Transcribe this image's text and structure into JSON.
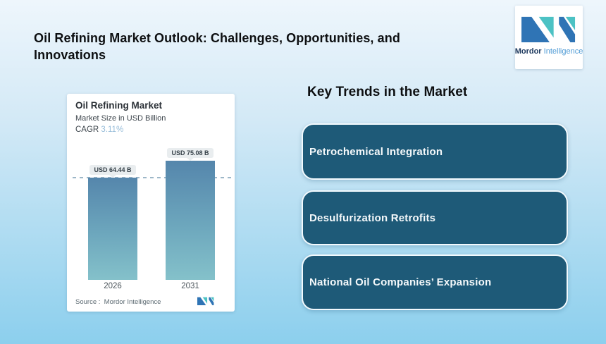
{
  "page": {
    "title_lines": [
      "Oil Refining Market Outlook: Challenges, Opportunities, and",
      "Innovations"
    ]
  },
  "brand": {
    "name_bold": "Mordor",
    "name_light": "Intelligence",
    "logo_icon": "mordor-intelligence-mn-mark",
    "logo_blue": "#2f74b5",
    "logo_teal": "#4cc2c4"
  },
  "chart_card": {
    "title": "Oil Refining Market",
    "subtitle": "Market Size in USD Billion",
    "cagr_label": "CAGR ",
    "cagr_value": "3.11%",
    "source_caption": "Source :  Mordor Intelligence",
    "bar_value_labels": [
      "USD 64.44 B",
      "USD 75.08 B"
    ],
    "year_labels": [
      "2026",
      "2031"
    ]
  },
  "chart_data": {
    "type": "bar",
    "categories": [
      "2026",
      "2031"
    ],
    "values": [
      64.44,
      75.08
    ],
    "series": [
      {
        "name": "Market Size",
        "values": [
          64.44,
          75.08
        ]
      }
    ],
    "data_labels": [
      "USD 64.44 B",
      "USD 75.08 B"
    ],
    "title": "Oil Refining Market",
    "subtitle": "Market Size in USD Billion",
    "cagr_percent": 3.11,
    "xlabel": "",
    "ylabel": "Market Size in USD Billion",
    "ylim": [
      0,
      90
    ],
    "grid": false,
    "legend": false,
    "annotations": [
      "dashed reference line at 64.44 (2026 level)"
    ],
    "bar_color_top": "#5586ac",
    "bar_color_bottom": "#84c1ca",
    "source": "Mordor Intelligence"
  },
  "key_trends": {
    "heading": "Key Trends in the Market",
    "items": [
      {
        "label": "Petrochemical Integration"
      },
      {
        "label": "Desulfurization Retrofits"
      },
      {
        "label": "National Oil Companies’ Expansion"
      }
    ],
    "card_fill": "#1e5a78",
    "card_border": "#f2f9fd"
  },
  "colors": {
    "background_top": "#eef6fc",
    "background_bottom": "#8ccfed",
    "title_text": "#0d0f11",
    "trend_text": "#f4f8fa"
  }
}
